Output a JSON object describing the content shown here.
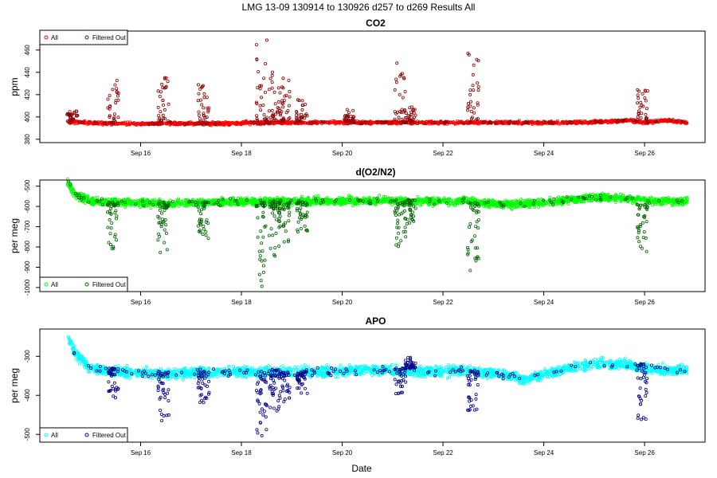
{
  "figure": {
    "main_title": "LMG   13-09    130914 to 130926    d257 to d269   Results All",
    "xlabel": "Date"
  },
  "chart_data": [
    {
      "type": "scatter",
      "title": "CO2",
      "ylabel": "ppm",
      "ylim": [
        377,
        477
      ],
      "yticks": [
        380,
        400,
        420,
        440,
        460
      ],
      "xlim": [
        14.0,
        27.2
      ],
      "xticks": [
        16,
        18,
        20,
        22,
        24,
        26
      ],
      "xtick_labels": [
        "Sep 16",
        "Sep 18",
        "Sep 20",
        "Sep 22",
        "Sep 24",
        "Sep 26"
      ],
      "legend": {
        "position": "top-left",
        "entries": [
          "All",
          "Filtered Out"
        ]
      },
      "series": [
        {
          "name": "All",
          "color": "#ff0000",
          "baseline": [
            [
              14.5,
              396
            ],
            [
              14.8,
              395
            ],
            [
              15.5,
              394
            ],
            [
              16.5,
              394
            ],
            [
              17.5,
              394
            ],
            [
              18.5,
              395
            ],
            [
              19.5,
              395
            ],
            [
              20.5,
              395
            ],
            [
              21.5,
              395
            ],
            [
              22.5,
              395
            ],
            [
              23.5,
              395
            ],
            [
              24.5,
              395
            ],
            [
              25.3,
              396
            ],
            [
              25.7,
              397
            ],
            [
              26.0,
              395
            ],
            [
              26.4,
              397
            ],
            [
              26.8,
              395
            ]
          ],
          "jitter": 1.2,
          "count": 1500
        },
        {
          "name": "Filtered Out",
          "color": "#8b0000",
          "events": [
            [
              14.65,
              397,
              405
            ],
            [
              15.45,
              396,
              432
            ],
            [
              16.45,
              397,
              439
            ],
            [
              17.25,
              396,
              430
            ],
            [
              18.4,
              396,
              472
            ],
            [
              18.65,
              396,
              445
            ],
            [
              18.85,
              396,
              434
            ],
            [
              19.2,
              396,
              418
            ],
            [
              20.15,
              396,
              405
            ],
            [
              21.15,
              396,
              452
            ],
            [
              21.35,
              396,
              408
            ],
            [
              22.6,
              397,
              466
            ],
            [
              25.95,
              398,
              433
            ]
          ],
          "event_count": 360
        }
      ]
    },
    {
      "type": "scatter",
      "title": "d(O2/N2)",
      "ylabel": "per meg",
      "ylim": [
        -1020,
        -470
      ],
      "yticks": [
        -1000,
        -900,
        -800,
        -700,
        -600,
        -500
      ],
      "xlim": [
        14.0,
        27.2
      ],
      "xticks": [
        16,
        18,
        20,
        22,
        24,
        26
      ],
      "xtick_labels": [
        "Sep 16",
        "Sep 18",
        "Sep 20",
        "Sep 22",
        "Sep 24",
        "Sep 26"
      ],
      "legend": {
        "position": "bottom-left",
        "entries": [
          "All",
          "Filtered Out"
        ]
      },
      "series": [
        {
          "name": "All",
          "color": "#00ff00",
          "baseline": [
            [
              14.55,
              -480
            ],
            [
              14.7,
              -540
            ],
            [
              15.0,
              -575
            ],
            [
              15.5,
              -580
            ],
            [
              16.5,
              -585
            ],
            [
              17.5,
              -580
            ],
            [
              18.5,
              -575
            ],
            [
              19.5,
              -575
            ],
            [
              20.5,
              -570
            ],
            [
              21.5,
              -575
            ],
            [
              22.5,
              -575
            ],
            [
              23.3,
              -590
            ],
            [
              24.0,
              -580
            ],
            [
              24.5,
              -570
            ],
            [
              25.0,
              -555
            ],
            [
              25.6,
              -560
            ],
            [
              26.2,
              -575
            ],
            [
              26.8,
              -575
            ]
          ],
          "jitter": 18,
          "count": 2200
        },
        {
          "name": "Filtered Out",
          "color": "#006400",
          "events": [
            [
              15.45,
              -580,
              -820
            ],
            [
              16.45,
              -590,
              -845
            ],
            [
              17.25,
              -580,
              -780
            ],
            [
              18.4,
              -580,
              -1000
            ],
            [
              18.65,
              -580,
              -880
            ],
            [
              18.85,
              -580,
              -800
            ],
            [
              19.2,
              -580,
              -730
            ],
            [
              21.15,
              -580,
              -800
            ],
            [
              21.35,
              -570,
              -690
            ],
            [
              22.6,
              -580,
              -920
            ],
            [
              25.95,
              -590,
              -830
            ]
          ],
          "event_count": 380
        }
      ]
    },
    {
      "type": "scatter",
      "title": "APO",
      "ylabel": "per meg",
      "ylim": [
        -520,
        -230
      ],
      "yticks": [
        -500,
        -400,
        -300
      ],
      "xlim": [
        14.0,
        27.2
      ],
      "xticks": [
        16,
        18,
        20,
        22,
        24,
        26
      ],
      "xtick_labels": [
        "Sep 16",
        "Sep 18",
        "Sep 20",
        "Sep 22",
        "Sep 24",
        "Sep 26"
      ],
      "legend": {
        "position": "bottom-left",
        "entries": [
          "All",
          "Filtered Out"
        ]
      },
      "series": [
        {
          "name": "All",
          "color": "#00ffff",
          "baseline": [
            [
              14.55,
              -250
            ],
            [
              14.7,
              -290
            ],
            [
              15.0,
              -330
            ],
            [
              15.5,
              -340
            ],
            [
              16.5,
              -345
            ],
            [
              17.5,
              -340
            ],
            [
              18.5,
              -340
            ],
            [
              19.5,
              -340
            ],
            [
              20.5,
              -335
            ],
            [
              21.5,
              -340
            ],
            [
              22.5,
              -335
            ],
            [
              23.3,
              -350
            ],
            [
              23.6,
              -360
            ],
            [
              24.0,
              -345
            ],
            [
              24.5,
              -330
            ],
            [
              25.0,
              -320
            ],
            [
              25.6,
              -320
            ],
            [
              26.2,
              -335
            ],
            [
              26.8,
              -335
            ]
          ],
          "jitter": 12,
          "count": 2200
        },
        {
          "name": "Filtered Out",
          "color": "#00008b",
          "events": [
            [
              15.45,
              -330,
              -410
            ],
            [
              16.45,
              -340,
              -465
            ],
            [
              17.25,
              -340,
              -420
            ],
            [
              18.4,
              -340,
              -510
            ],
            [
              18.65,
              -330,
              -440
            ],
            [
              18.85,
              -340,
              -420
            ],
            [
              19.2,
              -340,
              -400
            ],
            [
              21.15,
              -330,
              -400
            ],
            [
              21.35,
              -330,
              -300
            ],
            [
              22.6,
              -340,
              -450
            ],
            [
              25.95,
              -320,
              -470
            ]
          ],
          "event_count": 380
        }
      ]
    }
  ]
}
